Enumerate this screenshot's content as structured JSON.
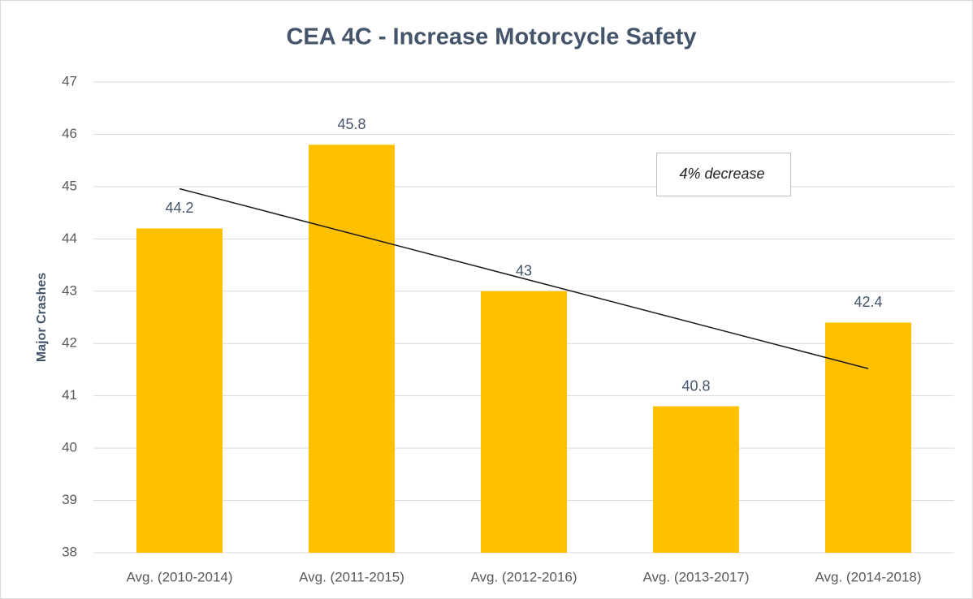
{
  "chart_data": {
    "type": "bar",
    "title": "CEA 4C - Increase Motorcycle Safety",
    "y_label": "Major Crashes",
    "categories": [
      "Avg. (2010-2014)",
      "Avg. (2011-2015)",
      "Avg. (2012-2016)",
      "Avg. (2013-2017)",
      "Avg. (2014-2018)"
    ],
    "values": [
      44.2,
      45.8,
      43,
      40.8,
      42.4
    ],
    "color": "#ffc000",
    "ylim": [
      38,
      47
    ],
    "yticks": [
      38,
      39,
      40,
      41,
      42,
      43,
      44,
      45,
      46,
      47
    ],
    "grid": true,
    "trendline": "linear",
    "annotation": "4% decrease"
  }
}
